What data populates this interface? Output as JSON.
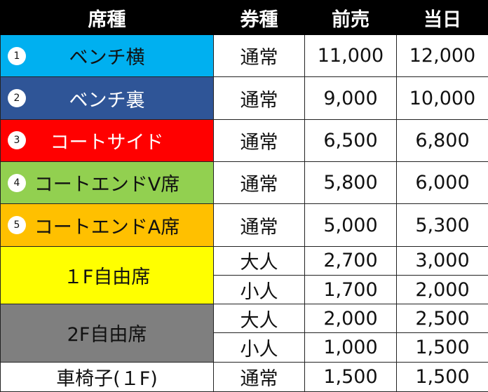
{
  "headers": {
    "seat": "席種",
    "ticket_type": "券種",
    "presale": "前売",
    "same_day": "当日"
  },
  "rows": [
    {
      "badge": "1",
      "seat": "ベンチ横",
      "type": "通常",
      "presale": "11,000",
      "same_day": "12,000",
      "bg": "#00b0f0",
      "fg": "#111111"
    },
    {
      "badge": "2",
      "seat": "ベンチ裏",
      "type": "通常",
      "presale": "9,000",
      "same_day": "10,000",
      "bg": "#2f5597",
      "fg": "#ffffff"
    },
    {
      "badge": "3",
      "seat": "コートサイド",
      "type": "通常",
      "presale": "6,500",
      "same_day": "6,800",
      "bg": "#ff0000",
      "fg": "#ffffff"
    },
    {
      "badge": "4",
      "seat": "コートエンドV席",
      "type": "通常",
      "presale": "5,800",
      "same_day": "6,000",
      "bg": "#92d050",
      "fg": "#111111"
    },
    {
      "badge": "5",
      "seat": "コートエンドA席",
      "type": "通常",
      "presale": "5,000",
      "same_day": "5,300",
      "bg": "#ffc000",
      "fg": "#111111"
    }
  ],
  "free_seats": [
    {
      "seat": "１F自由席",
      "bg": "#ffff00",
      "types": [
        {
          "type": "大人",
          "presale": "2,700",
          "same_day": "3,000"
        },
        {
          "type": "小人",
          "presale": "1,700",
          "same_day": "2,000"
        }
      ]
    },
    {
      "seat": "2F自由席",
      "bg": "#7f7f7f",
      "types": [
        {
          "type": "大人",
          "presale": "2,000",
          "same_day": "2,500"
        },
        {
          "type": "小人",
          "presale": "1,000",
          "same_day": "1,500"
        }
      ]
    }
  ],
  "wheelchair": {
    "seat": "車椅子(１F)",
    "type": "通常",
    "presale": "1,500",
    "same_day": "1,500"
  }
}
